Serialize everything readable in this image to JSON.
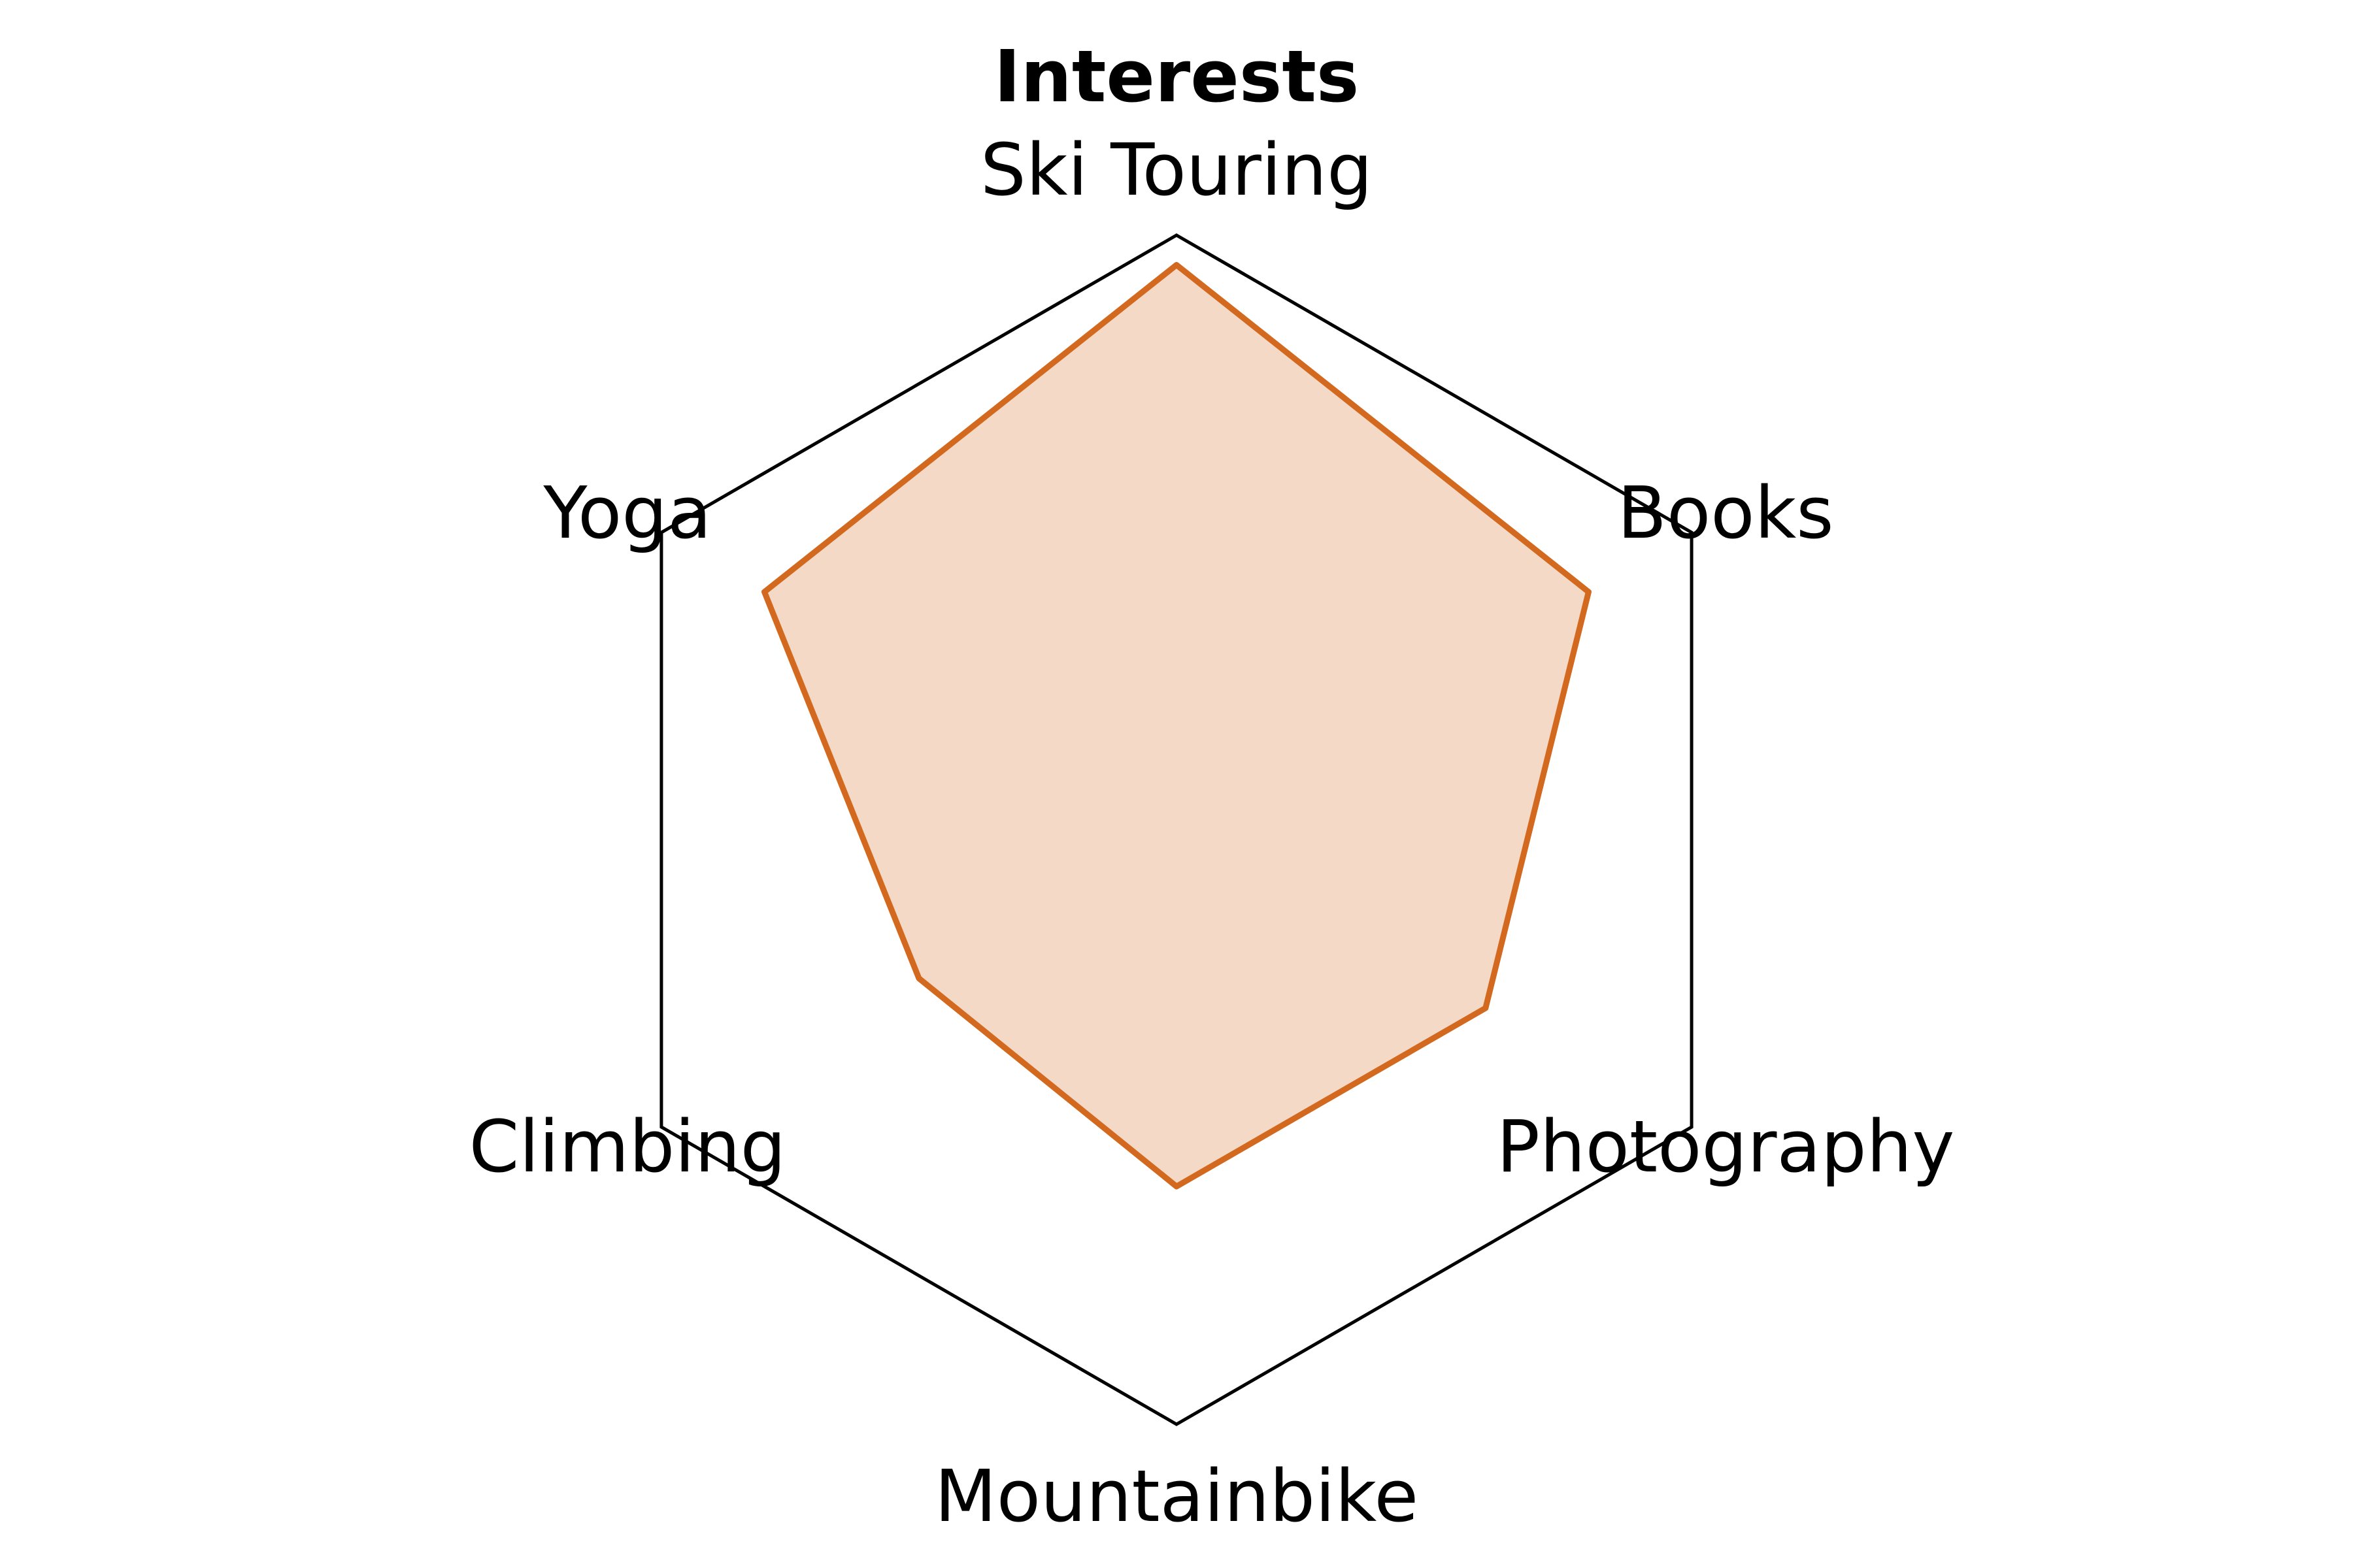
{
  "chart_data": {
    "type": "radar",
    "title": "Interests",
    "axes": [
      "Ski Touring",
      "Books",
      "Photography",
      "Mountainbike",
      "Climbing",
      "Yoga"
    ],
    "series": [
      {
        "name": "Interests",
        "values": [
          0.95,
          0.8,
          0.6,
          0.6,
          0.5,
          0.8
        ]
      }
    ],
    "range": [
      0,
      1
    ],
    "colors": {
      "line": "#d2691e",
      "fill": "#f4d9c7",
      "frame": "#000000"
    }
  }
}
